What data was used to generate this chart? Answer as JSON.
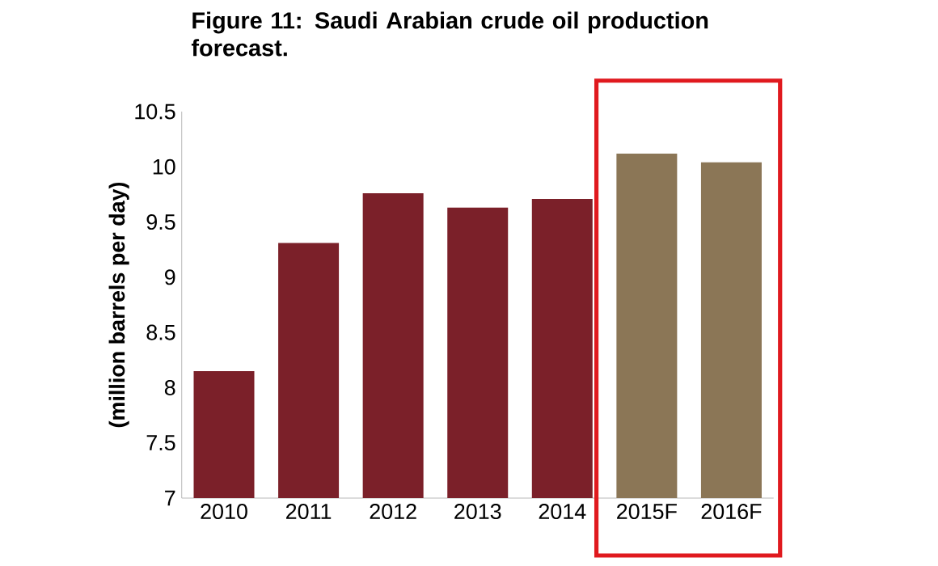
{
  "chart_data": {
    "type": "bar",
    "title": "Figure 11: Saudi Arabian crude oil production forecast.",
    "ylabel": "(million barrels per day)",
    "categories": [
      "2010",
      "2011",
      "2012",
      "2013",
      "2014",
      "2015F",
      "2016F"
    ],
    "values": [
      8.15,
      9.31,
      9.76,
      9.63,
      9.71,
      10.12,
      10.04
    ],
    "colors": [
      "#7b2029",
      "#7b2029",
      "#7b2029",
      "#7b2029",
      "#7b2029",
      "#8b7656",
      "#8b7656"
    ],
    "ylim": [
      7,
      10.5
    ],
    "yticks": [
      7,
      7.5,
      8,
      8.5,
      9,
      9.5,
      10,
      10.5
    ],
    "grid": false
  }
}
